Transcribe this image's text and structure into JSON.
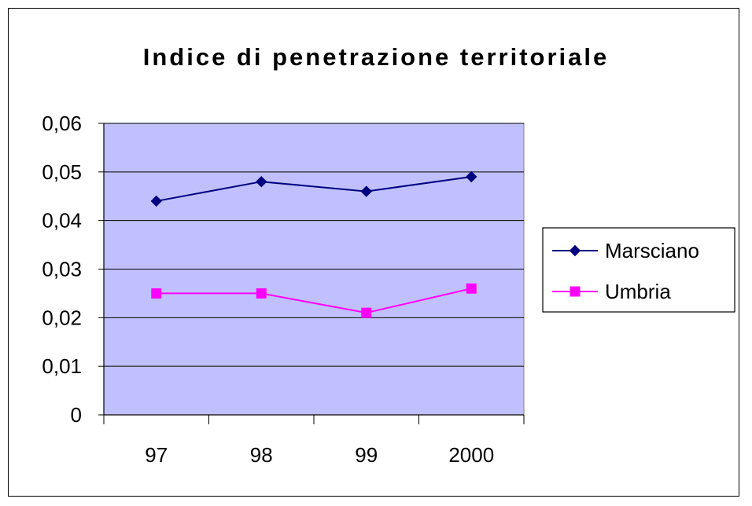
{
  "chart_data": {
    "type": "line",
    "title": "Indice di penetrazione territoriale",
    "xlabel": "",
    "ylabel": "",
    "categories": [
      "97",
      "98",
      "99",
      "2000"
    ],
    "ylim": [
      0,
      0.06
    ],
    "yticks": [
      "0",
      "0,01",
      "0,02",
      "0,03",
      "0,04",
      "0,05",
      "0,06"
    ],
    "ytick_values": [
      0,
      0.01,
      0.02,
      0.03,
      0.04,
      0.05,
      0.06
    ],
    "grid": true,
    "legend_position": "right",
    "plot_background": "#C0C0FF",
    "series": [
      {
        "name": "Marsciano",
        "values": [
          0.044,
          0.048,
          0.046,
          0.049
        ],
        "color": "#000080",
        "marker": "diamond"
      },
      {
        "name": "Umbria",
        "values": [
          0.025,
          0.025,
          0.021,
          0.026
        ],
        "color": "#FF00FF",
        "marker": "square"
      }
    ]
  }
}
